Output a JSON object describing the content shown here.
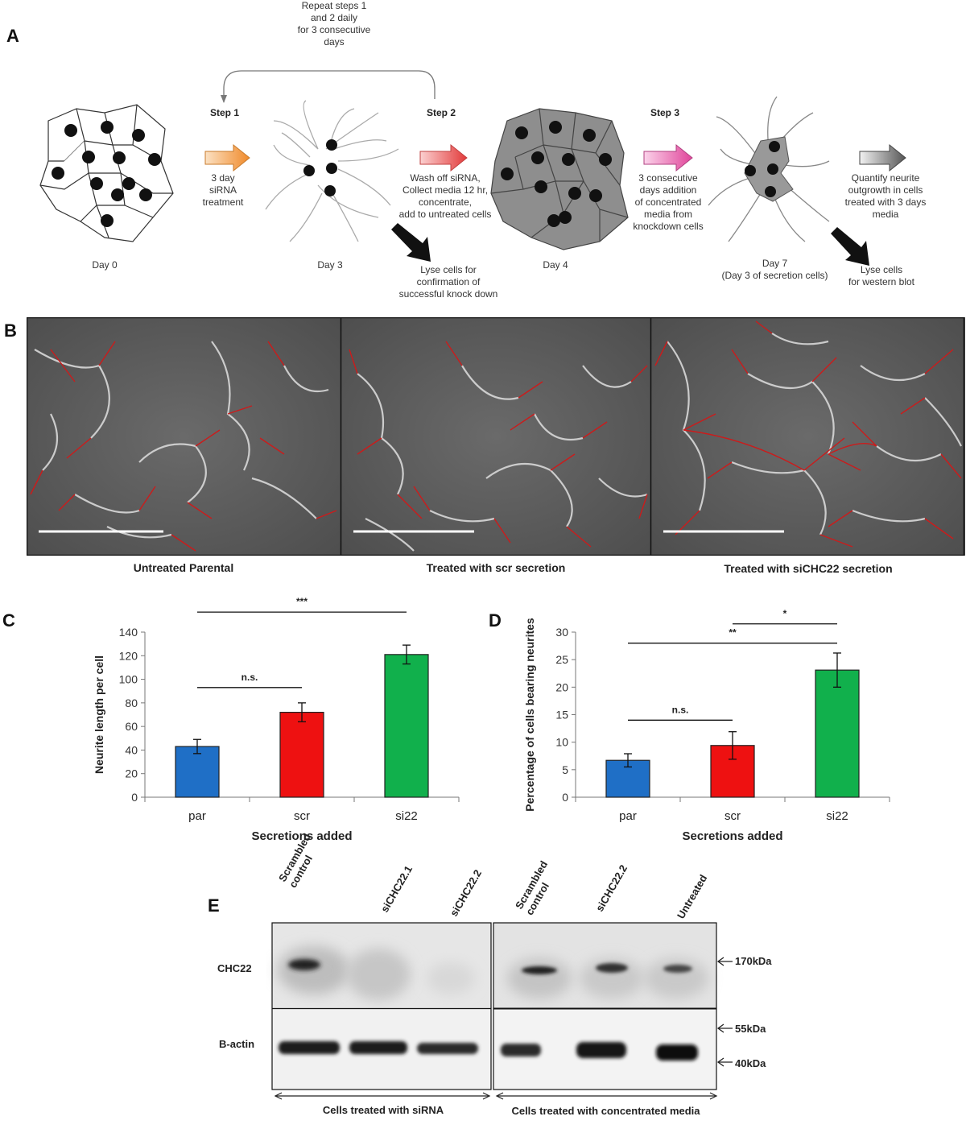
{
  "panel_a": {
    "label": "A",
    "repeat_note": [
      "Repeat steps 1",
      "and 2 daily",
      "for 3 consecutive",
      "days"
    ],
    "step1": "Step 1",
    "step2": "Step 2",
    "step3": "Step 3",
    "step1_desc": [
      "3 day",
      "siRNA",
      "treatment"
    ],
    "step2_desc": [
      "Wash off siRNA,",
      "Collect media 12 hr,",
      "concentrate,",
      "add to untreated cells"
    ],
    "step3_desc": [
      "3 consecutive",
      "days addition",
      "of concentrated",
      "media from",
      "knockdown cells"
    ],
    "quantify_desc": [
      "Quantify neurite",
      "outgrowth in cells",
      "treated with 3 days",
      "media"
    ],
    "lyse1_desc": [
      "Lyse cells for",
      "confirmation of",
      "successful knock down"
    ],
    "lyse2_desc": [
      "Lyse cells",
      "for western blot"
    ],
    "day0": "Day 0",
    "day3": "Day 3",
    "day4": "Day 4",
    "day7": [
      "Day 7",
      "(Day 3 of secretion cells)"
    ]
  },
  "panel_b": {
    "label": "B",
    "captions": [
      "Untreated Parental",
      "Treated with scr secretion",
      "Treated with siCHC22 secretion"
    ]
  },
  "chart_data": [
    {
      "panel": "C",
      "type": "bar",
      "categories": [
        "par",
        "scr",
        "si22"
      ],
      "values": [
        43,
        72,
        121
      ],
      "errors": [
        6,
        8,
        8
      ],
      "colors": [
        "#1f6fc6",
        "#ee1111",
        "#11b04c"
      ],
      "xlabel": "Secretions added",
      "ylabel": "Neurite length per cell",
      "ylim": [
        0,
        140
      ],
      "yticks": [
        0,
        20,
        40,
        60,
        80,
        100,
        120,
        140
      ],
      "significance": [
        {
          "from": 0,
          "to": 1,
          "label": "n.s.",
          "y": 93
        },
        {
          "from": 0,
          "to": 2,
          "label": "***",
          "y": 157
        },
        {
          "from": 1,
          "to": 2,
          "label": "*",
          "y": 179
        }
      ]
    },
    {
      "panel": "D",
      "type": "bar",
      "categories": [
        "par",
        "scr",
        "si22"
      ],
      "values": [
        6.7,
        9.4,
        23.1
      ],
      "errors": [
        1.2,
        2.5,
        3.1
      ],
      "colors": [
        "#1f6fc6",
        "#ee1111",
        "#11b04c"
      ],
      "xlabel": "Secretions added",
      "ylabel": "Percentage of cells bearing neurites",
      "ylim": [
        0,
        30
      ],
      "yticks": [
        0,
        5,
        10,
        15,
        20,
        25,
        30
      ],
      "significance": [
        {
          "from": 0,
          "to": 1,
          "label": "n.s.",
          "y": 14
        },
        {
          "from": 0,
          "to": 2,
          "label": "**",
          "y": 28
        },
        {
          "from": 1,
          "to": 2,
          "label": "*",
          "y": 31.5
        }
      ]
    }
  ],
  "panel_e": {
    "label": "E",
    "lanes_left": [
      "Scrambled control",
      "siCHC22.1",
      "siCHC22.2"
    ],
    "lanes_right": [
      "Scrambled control",
      "siCHC22.2",
      "Untreated"
    ],
    "row_chc22": "CHC22",
    "row_bactin": "B-actin",
    "marker_170": "170kDa",
    "marker_55": "55kDa",
    "marker_40": "40kDa",
    "group_left": "Cells treated with siRNA",
    "group_right": "Cells treated with concentrated media"
  }
}
